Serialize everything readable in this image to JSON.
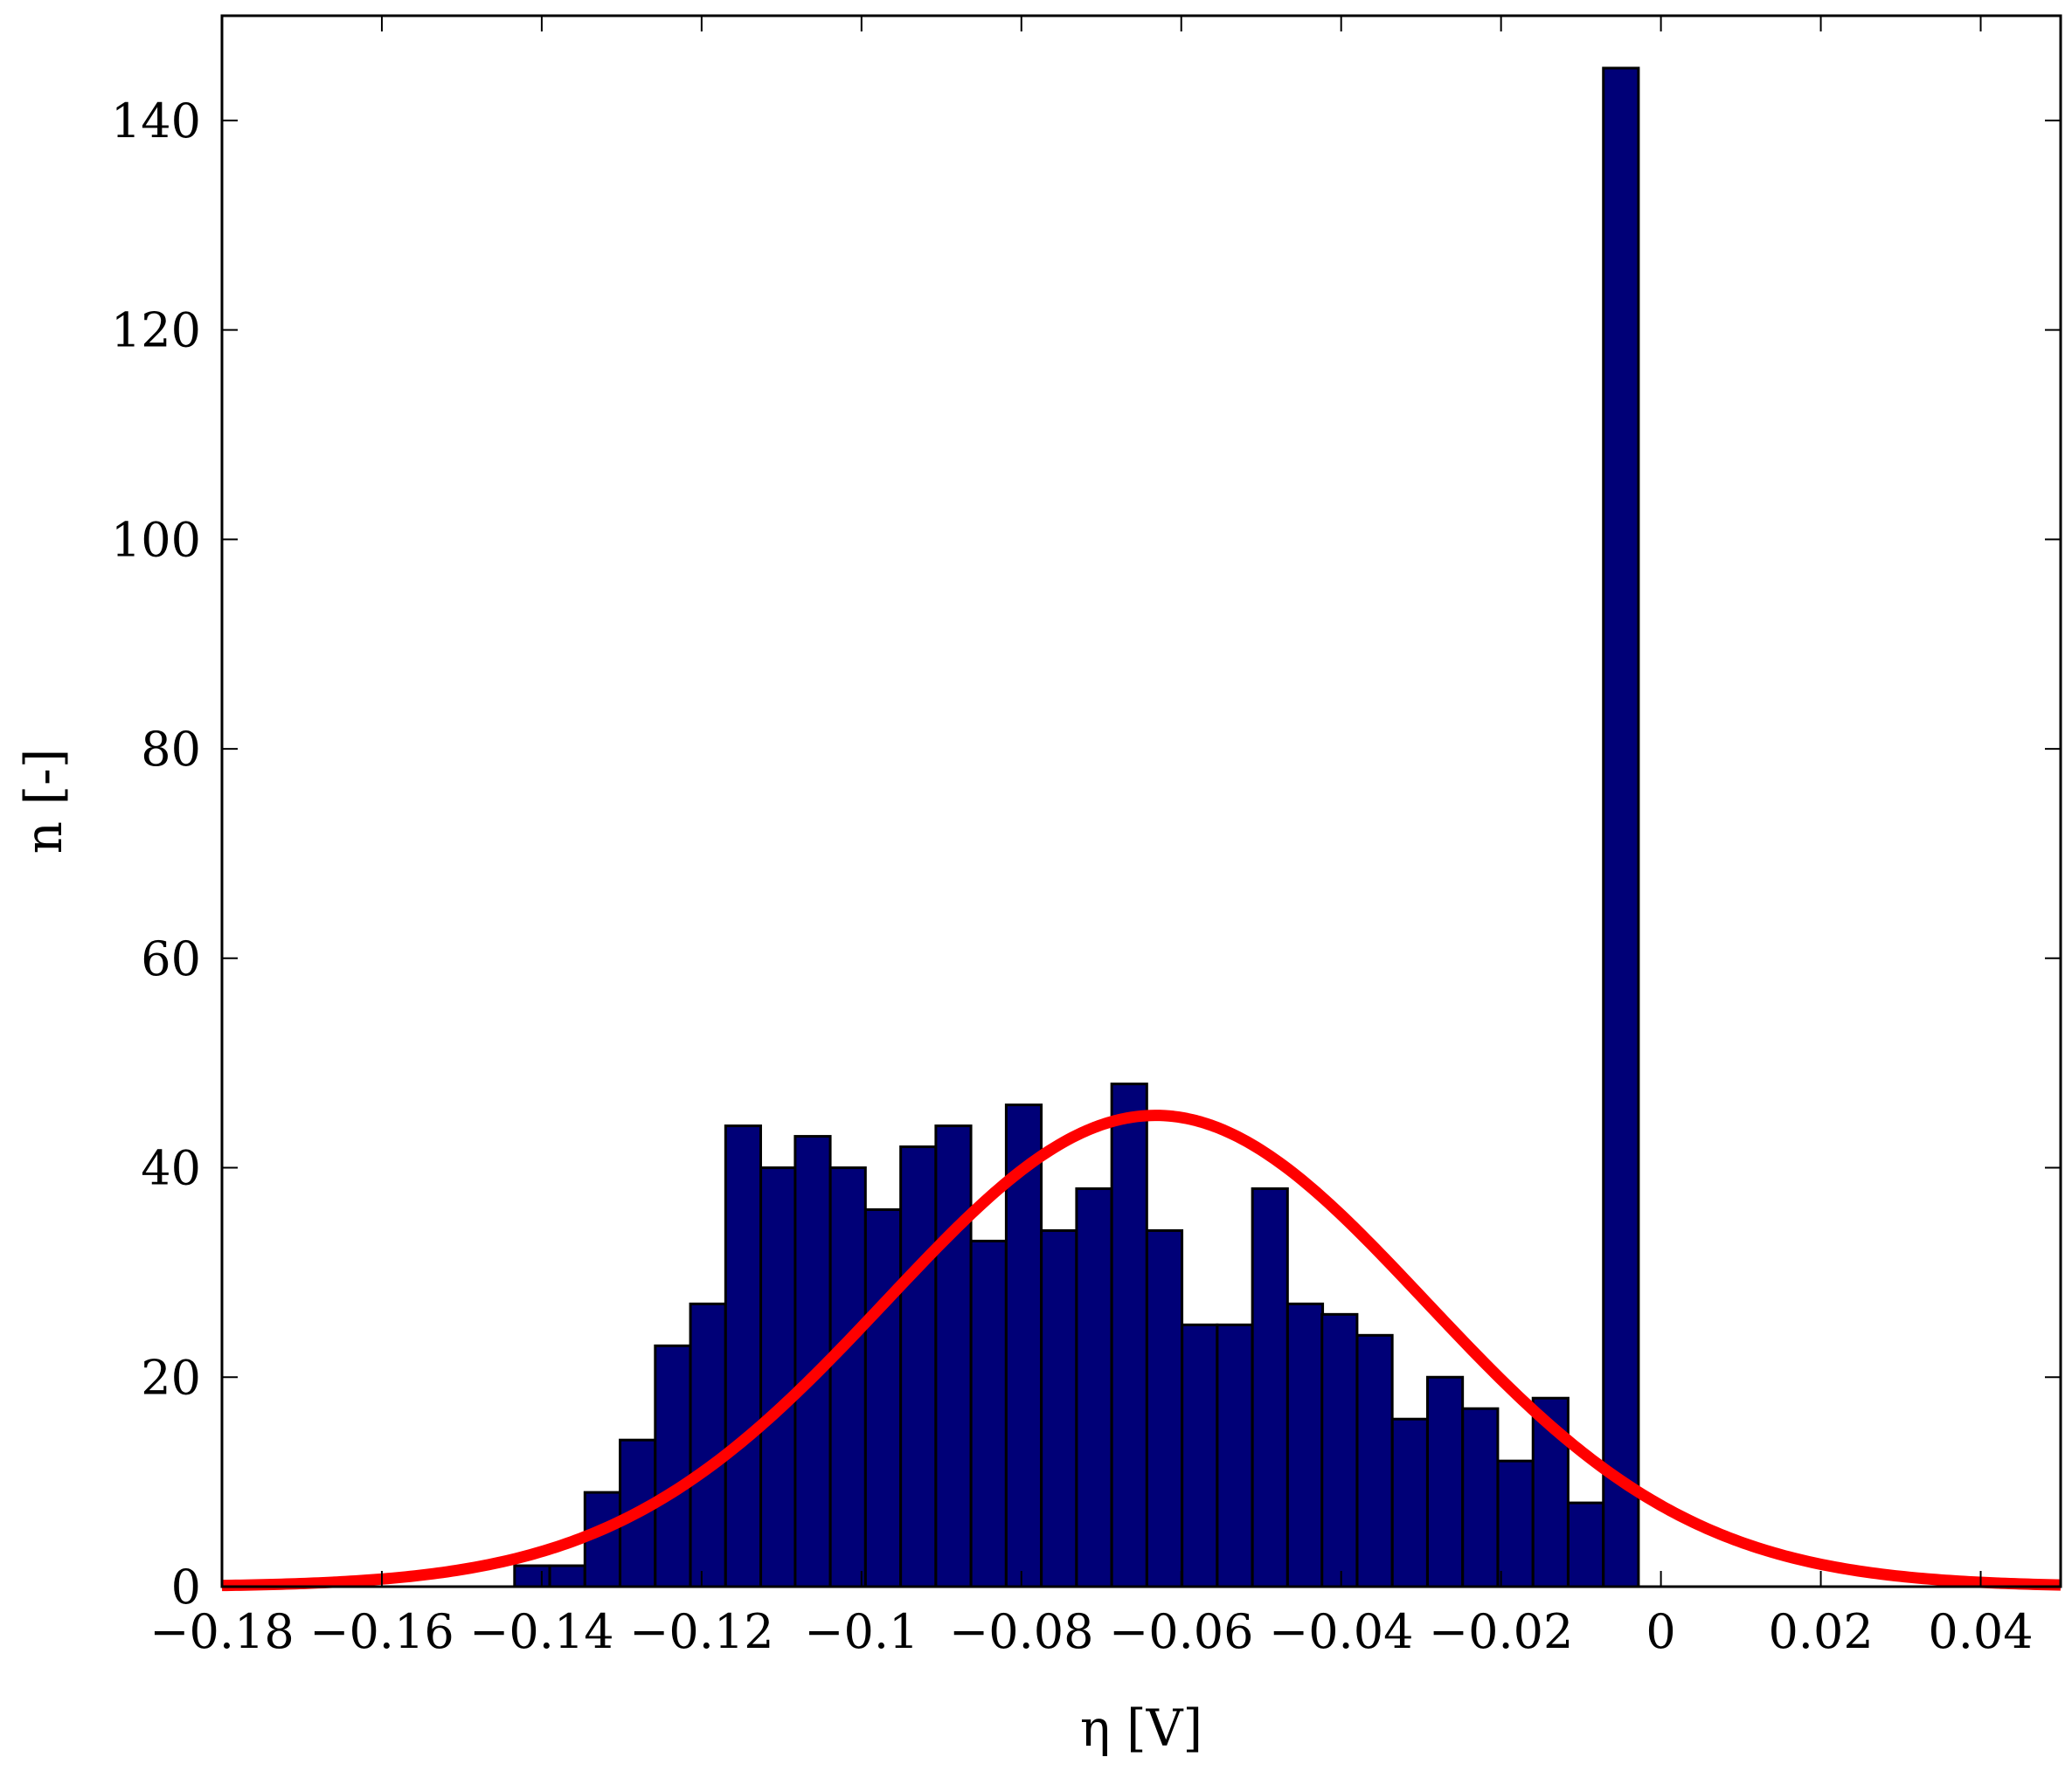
{
  "chart_data": {
    "type": "bar",
    "xlabel": "η [V]",
    "ylabel": "n [-]",
    "xlim": [
      -0.18,
      0.05
    ],
    "ylim": [
      0,
      150
    ],
    "bin_width": 0.00439,
    "bins": [
      {
        "x0": -0.1434,
        "value": 2
      },
      {
        "x0": -0.139,
        "value": 2
      },
      {
        "x0": -0.1346,
        "value": 9
      },
      {
        "x0": -0.1302,
        "value": 14
      },
      {
        "x0": -0.1258,
        "value": 23
      },
      {
        "x0": -0.1214,
        "value": 27
      },
      {
        "x0": -0.117,
        "value": 44
      },
      {
        "x0": -0.1126,
        "value": 40
      },
      {
        "x0": -0.1083,
        "value": 43
      },
      {
        "x0": -0.1039,
        "value": 40
      },
      {
        "x0": -0.0995,
        "value": 36
      },
      {
        "x0": -0.0951,
        "value": 42
      },
      {
        "x0": -0.0907,
        "value": 44
      },
      {
        "x0": -0.0863,
        "value": 33
      },
      {
        "x0": -0.0819,
        "value": 46
      },
      {
        "x0": -0.0775,
        "value": 34
      },
      {
        "x0": -0.0731,
        "value": 38
      },
      {
        "x0": -0.0687,
        "value": 48
      },
      {
        "x0": -0.0643,
        "value": 34
      },
      {
        "x0": -0.0599,
        "value": 25
      },
      {
        "x0": -0.0555,
        "value": 25
      },
      {
        "x0": -0.0511,
        "value": 38
      },
      {
        "x0": -0.0467,
        "value": 27
      },
      {
        "x0": -0.0424,
        "value": 26
      },
      {
        "x0": -0.038,
        "value": 24
      },
      {
        "x0": -0.0336,
        "value": 16
      },
      {
        "x0": -0.0292,
        "value": 20
      },
      {
        "x0": -0.0248,
        "value": 17
      },
      {
        "x0": -0.0204,
        "value": 12
      },
      {
        "x0": -0.016,
        "value": 18
      },
      {
        "x0": -0.0116,
        "value": 8
      },
      {
        "x0": -0.0072,
        "value": 145
      }
    ],
    "fit_curve": {
      "type": "gaussian",
      "mean": -0.0632,
      "sigma": 0.0337,
      "peak": 45,
      "color": "#ff0000"
    },
    "xticks": [
      {
        "v": -0.18,
        "label": "−0.18"
      },
      {
        "v": -0.16,
        "label": "−0.16"
      },
      {
        "v": -0.14,
        "label": "−0.14"
      },
      {
        "v": -0.12,
        "label": "−0.12"
      },
      {
        "v": -0.1,
        "label": "−0.1"
      },
      {
        "v": -0.08,
        "label": "−0.08"
      },
      {
        "v": -0.06,
        "label": "−0.06"
      },
      {
        "v": -0.04,
        "label": "−0.04"
      },
      {
        "v": -0.02,
        "label": "−0.02"
      },
      {
        "v": 0,
        "label": "0"
      },
      {
        "v": 0.02,
        "label": "0.02"
      },
      {
        "v": 0.04,
        "label": "0.04"
      }
    ],
    "yticks": [
      {
        "v": 0,
        "label": "0"
      },
      {
        "v": 20,
        "label": "20"
      },
      {
        "v": 40,
        "label": "40"
      },
      {
        "v": 60,
        "label": "60"
      },
      {
        "v": 80,
        "label": "80"
      },
      {
        "v": 100,
        "label": "100"
      },
      {
        "v": 120,
        "label": "120"
      },
      {
        "v": 140,
        "label": "140"
      }
    ],
    "bar_color": "#000077",
    "bar_edge_color": "#000000",
    "grid": false,
    "legend": "none"
  }
}
